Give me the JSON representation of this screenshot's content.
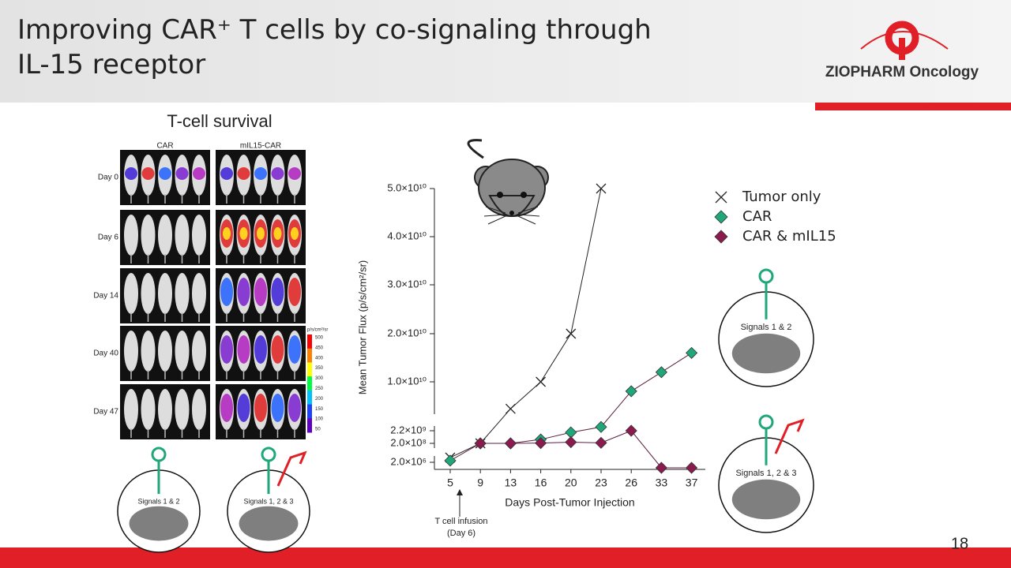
{
  "header": {
    "title": "Improving CAR⁺ T cells by co-signaling through IL-15 receptor",
    "logo": "ZIOPHARM Oncology",
    "page_number": "18"
  },
  "imaging": {
    "title": "T-cell survival",
    "columns": [
      "CAR",
      "mIL15-CAR"
    ],
    "rows": [
      "Day 0",
      "Day 6",
      "Day 14",
      "Day 40",
      "Day 47"
    ],
    "colorbar_unit": "p/s/cm²/sr",
    "colorbar_ticks": [
      500,
      450,
      400,
      350,
      300,
      250,
      200,
      150,
      100,
      50
    ]
  },
  "cells": [
    "Signals 1 & 2",
    "Signals 1, 2 & 3",
    "Signals 1 & 2",
    "Signals 1, 2 & 3"
  ],
  "chart_data": {
    "type": "line",
    "x_label": "Days Post-Tumor Injection",
    "y_label": "Mean Tumor Flux (p/s/cm²/sr)",
    "categories": [
      "5",
      "9",
      "13",
      "16",
      "20",
      "23",
      "26",
      "33",
      "37"
    ],
    "series": [
      {
        "name": "Tumor only",
        "color": "#222222",
        "marker": "x",
        "values": [
          6300000,
          200000000,
          5700000000,
          10000000000,
          20000000000,
          50000000000,
          null,
          null,
          null
        ]
      },
      {
        "name": "CAR",
        "color": "#1fa77a",
        "marker": "diamond",
        "values": [
          3000000,
          200000000,
          200000000,
          420000000,
          1600000000,
          2800000000,
          8500000000,
          12000000000,
          16000000000
        ]
      },
      {
        "name": "CAR & mIL15",
        "color": "#8b1a4e",
        "marker": "diamond",
        "values": [
          null,
          200000000,
          200000000,
          210000000,
          250000000,
          220000000,
          2200000000,
          1000000,
          1000000
        ]
      }
    ],
    "ylim": [
      1000000,
      50000000000
    ],
    "yticks": [
      {
        "value": 2000000,
        "label": "2.0×10⁶"
      },
      {
        "value": 200000000,
        "label": "2.0×10⁸"
      },
      {
        "value": 2200000000,
        "label": "2.2×10⁹"
      },
      {
        "value": 10000000000,
        "label": "1.0×10¹⁰"
      },
      {
        "value": 20000000000,
        "label": "2.0×10¹⁰"
      },
      {
        "value": 30000000000,
        "label": "3.0×10¹⁰"
      },
      {
        "value": 40000000000,
        "label": "4.0×10¹⁰"
      },
      {
        "value": 50000000000,
        "label": "5.0×10¹⁰"
      }
    ],
    "annotation": [
      "T cell infusion",
      "(Day 6)"
    ]
  }
}
